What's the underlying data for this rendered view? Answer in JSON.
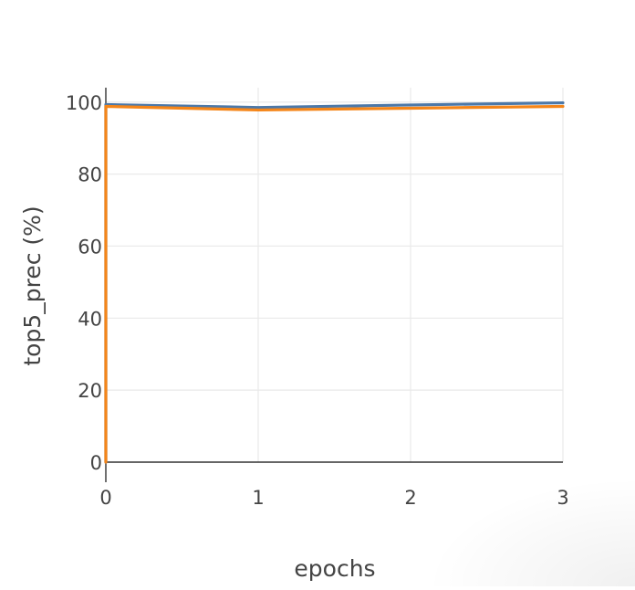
{
  "chart_data": {
    "type": "line",
    "title": "",
    "xlabel": "epochs",
    "ylabel": "top5_prec (%)",
    "xlim": [
      0,
      3
    ],
    "ylim": [
      0,
      104
    ],
    "x_ticks": [
      "0",
      "1",
      "2",
      "3"
    ],
    "y_ticks": [
      "0",
      "20",
      "40",
      "60",
      "80",
      "100"
    ],
    "grid": true,
    "legend": "none",
    "series": [
      {
        "color": "#4c78a8",
        "x": [
          0,
          0,
          1,
          2,
          3
        ],
        "y": [
          0,
          99.3,
          98.5,
          99.2,
          99.8
        ]
      },
      {
        "color": "#f58518",
        "x": [
          0,
          0,
          1,
          2,
          3
        ],
        "y": [
          0,
          98.8,
          97.8,
          98.3,
          98.8
        ]
      }
    ]
  }
}
